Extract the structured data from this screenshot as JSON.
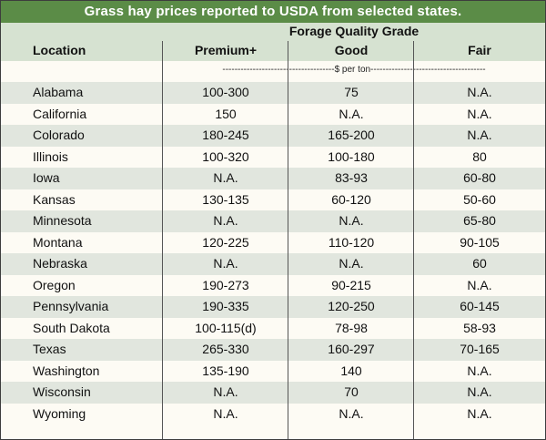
{
  "title": "Grass hay prices reported to USDA from selected states.",
  "header": {
    "group": "Forage Quality Grade",
    "location": "Location",
    "premium": "Premium+",
    "good": "Good",
    "fair": "Fair"
  },
  "units": "-------------------------------------$ per ton--------------------------------------",
  "rows": [
    {
      "location": "Alabama",
      "premium": "100-300",
      "good": "75",
      "fair": "N.A."
    },
    {
      "location": "California",
      "premium": "150",
      "good": "N.A.",
      "fair": "N.A."
    },
    {
      "location": "Colorado",
      "premium": "180-245",
      "good": "165-200",
      "fair": "N.A."
    },
    {
      "location": "Illinois",
      "premium": "100-320",
      "good": "100-180",
      "fair": "80"
    },
    {
      "location": "Iowa",
      "premium": "N.A.",
      "good": "83-93",
      "fair": "60-80"
    },
    {
      "location": "Kansas",
      "premium": "130-135",
      "good": "60-120",
      "fair": "50-60"
    },
    {
      "location": "Minnesota",
      "premium": "N.A.",
      "good": "N.A.",
      "fair": "65-80"
    },
    {
      "location": "Montana",
      "premium": "120-225",
      "good": "110-120",
      "fair": "90-105"
    },
    {
      "location": "Nebraska",
      "premium": "N.A.",
      "good": "N.A.",
      "fair": "60"
    },
    {
      "location": "Oregon",
      "premium": "190-273",
      "good": "90-215",
      "fair": "N.A."
    },
    {
      "location": "Pennsylvania",
      "premium": "190-335",
      "good": "120-250",
      "fair": "60-145"
    },
    {
      "location": "South Dakota",
      "premium": "100-115(d)",
      "good": "78-98",
      "fair": "58-93"
    },
    {
      "location": "Texas",
      "premium": "265-330",
      "good": "160-297",
      "fair": "70-165"
    },
    {
      "location": "Washington",
      "premium": "135-190",
      "good": "140",
      "fair": "N.A."
    },
    {
      "location": "Wisconsin",
      "premium": "N.A.",
      "good": "70",
      "fair": "N.A."
    },
    {
      "location": "Wyoming",
      "premium": "N.A.",
      "good": "N.A.",
      "fair": "N.A."
    }
  ],
  "colors": {
    "title_bg": "#5b8c47",
    "header_bg": "#d6e2d1",
    "alt_row": "#e1e6de",
    "page_bg": "#fdfbf4"
  }
}
